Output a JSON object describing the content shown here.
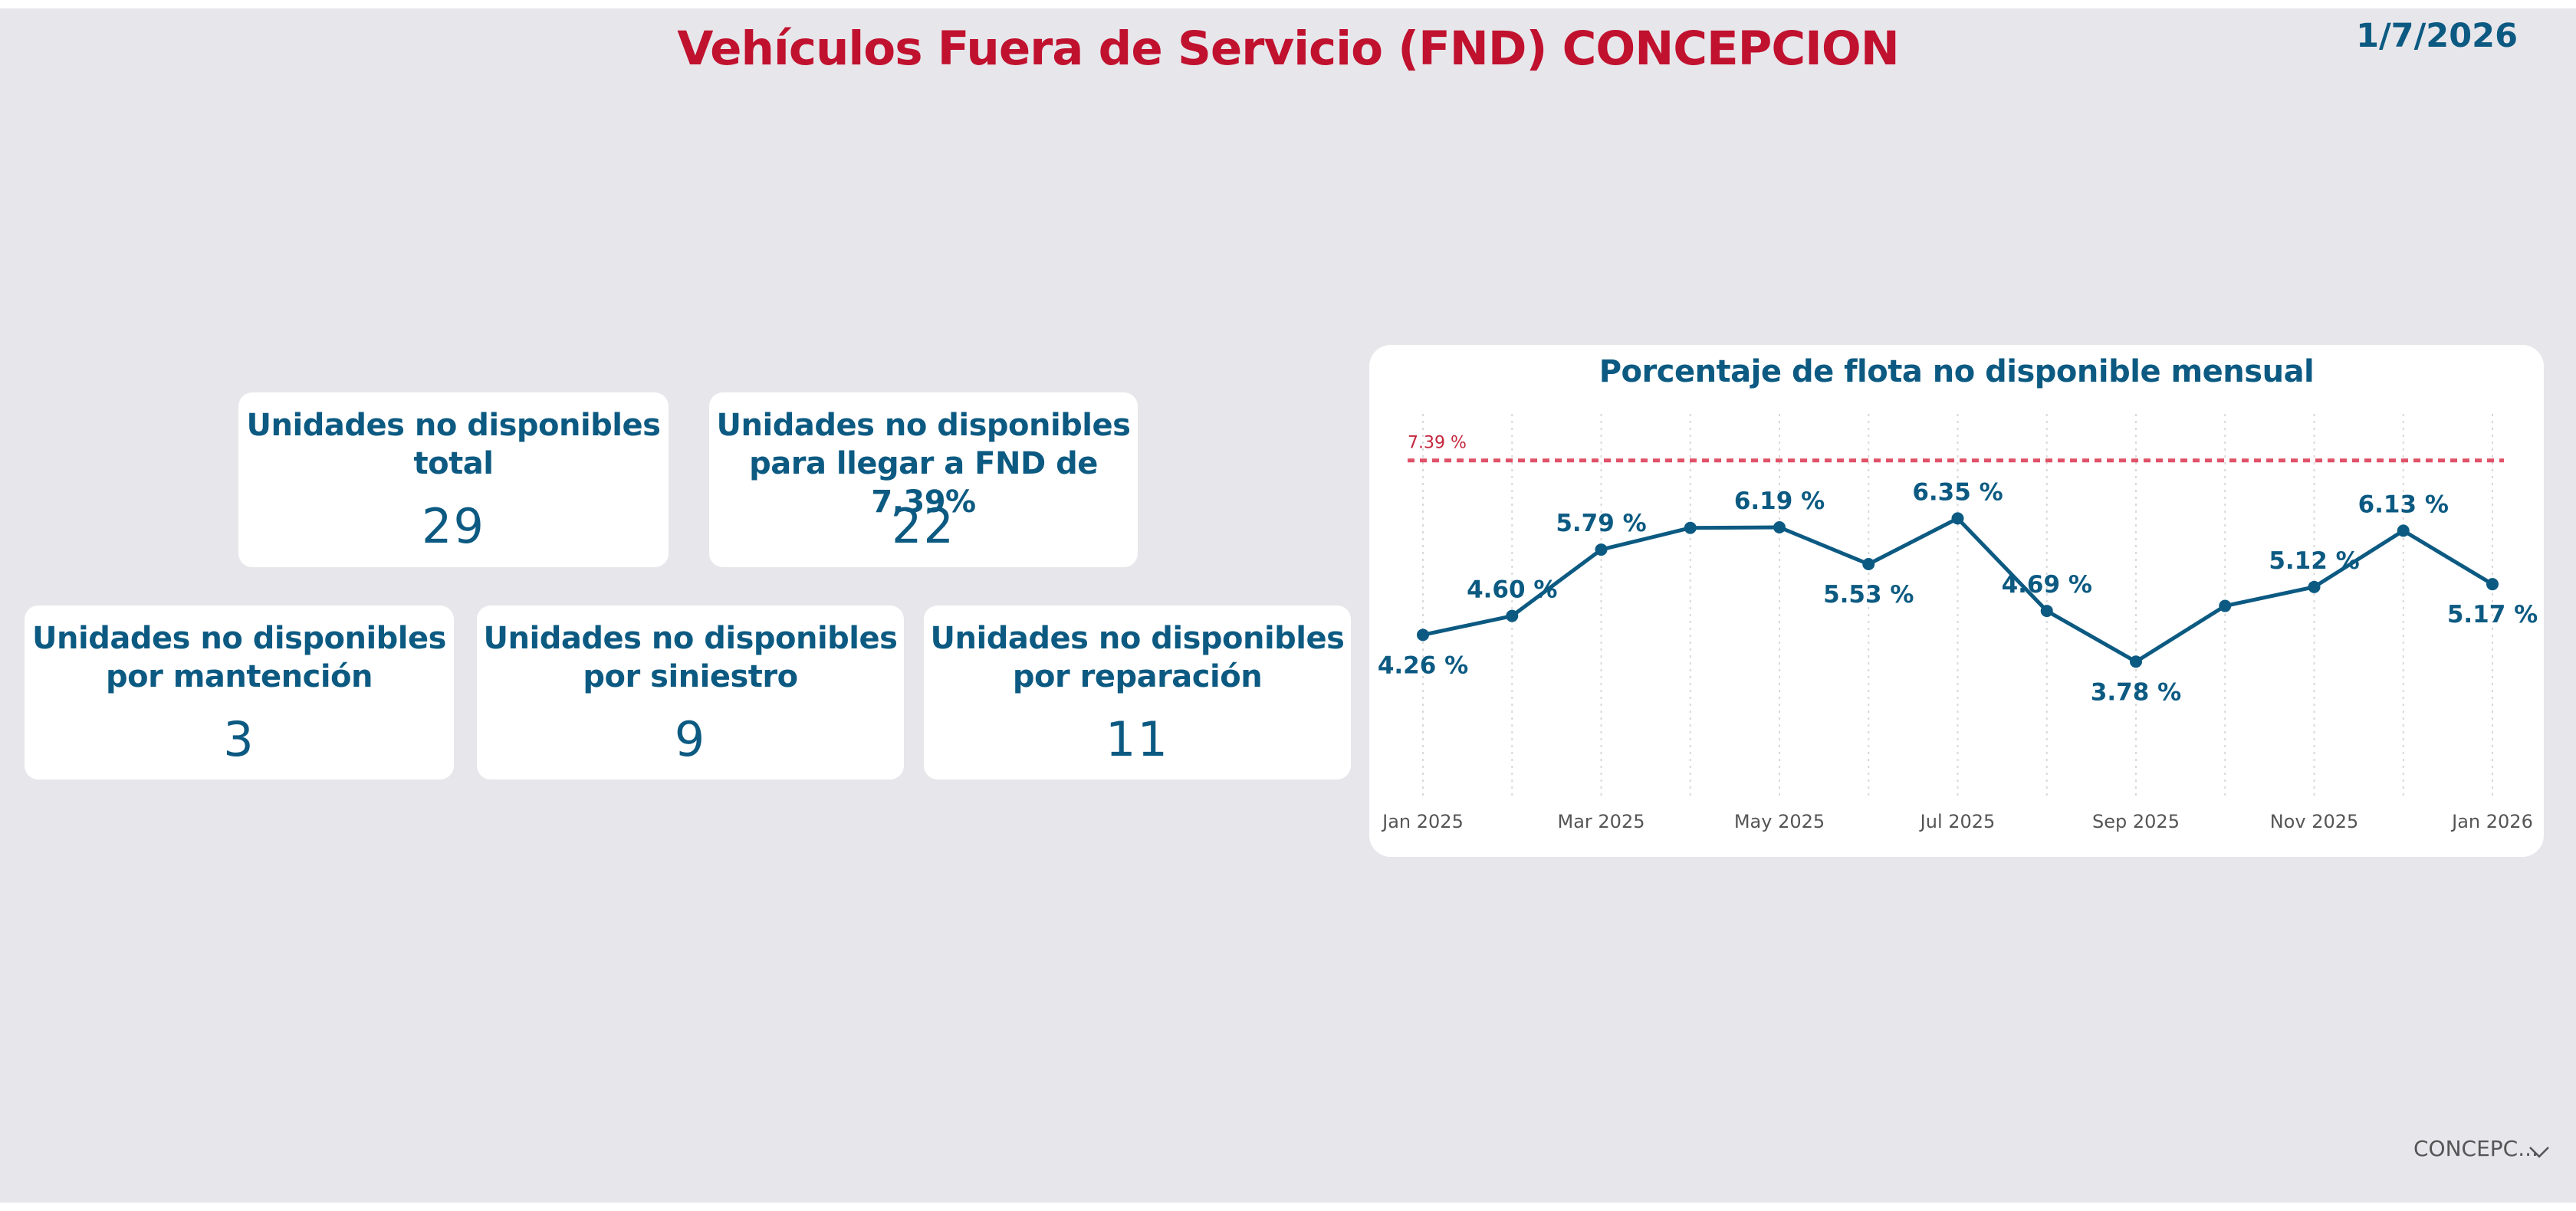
{
  "header": {
    "title": "Vehículos Fuera de Servicio (FND) CONCEPCION",
    "date": "1/7/2026"
  },
  "kpis": {
    "total": {
      "label": "Unidades no disponibles\ntotal",
      "value": "29"
    },
    "to_fnd": {
      "label": "Unidades no disponibles\npara llegar a FND de 7,39%",
      "value": "22"
    },
    "mantencion": {
      "label": "Unidades no disponibles\npor mantención",
      "value": "3"
    },
    "siniestro": {
      "label": "Unidades no disponibles\npor siniestro",
      "value": "9"
    },
    "reparacion": {
      "label": "Unidades no disponibles\npor reparación",
      "value": "11"
    }
  },
  "chart_data": {
    "type": "line",
    "title": "Porcentaje de flota no disponible mensual",
    "x": [
      "Jan 2025",
      "Feb 2025",
      "Mar 2025",
      "Apr 2025",
      "May 2025",
      "Jun 2025",
      "Jul 2025",
      "Aug 2025",
      "Sep 2025",
      "Oct 2025",
      "Nov 2025",
      "Dec 2025",
      "Jan 2026"
    ],
    "values": [
      4.26,
      4.6,
      5.79,
      6.18,
      6.19,
      5.53,
      6.35,
      4.69,
      3.78,
      4.78,
      5.12,
      6.13,
      5.17
    ],
    "data_labels": [
      "4.26 %",
      "4.60 %",
      "5.79 %",
      "",
      "6.19 %",
      "5.53 %",
      "6.35 %",
      "4.69 %",
      "3.78 %",
      "",
      "5.12 %",
      "6.13 %",
      "5.17 %"
    ],
    "label_position": [
      "below",
      "above",
      "above",
      "",
      "above",
      "below",
      "above",
      "above",
      "below",
      "",
      "above",
      "above",
      "below"
    ],
    "tick_labels": [
      "Jan 2025",
      "",
      "Mar 2025",
      "",
      "May 2025",
      "",
      "Jul 2025",
      "",
      "Sep 2025",
      "",
      "Nov 2025",
      "",
      "Jan 2026"
    ],
    "ylim": [
      3.0,
      8.5
    ],
    "reference_line": {
      "value": 7.39,
      "label": "7.39 %",
      "color": "#e05268"
    },
    "line_color": "#0c5a82",
    "xlabel": "",
    "ylabel": "",
    "grid": "vertical dotted"
  },
  "slicer": {
    "value": "CONCEPC...",
    "icon": "chevron-down-icon"
  }
}
